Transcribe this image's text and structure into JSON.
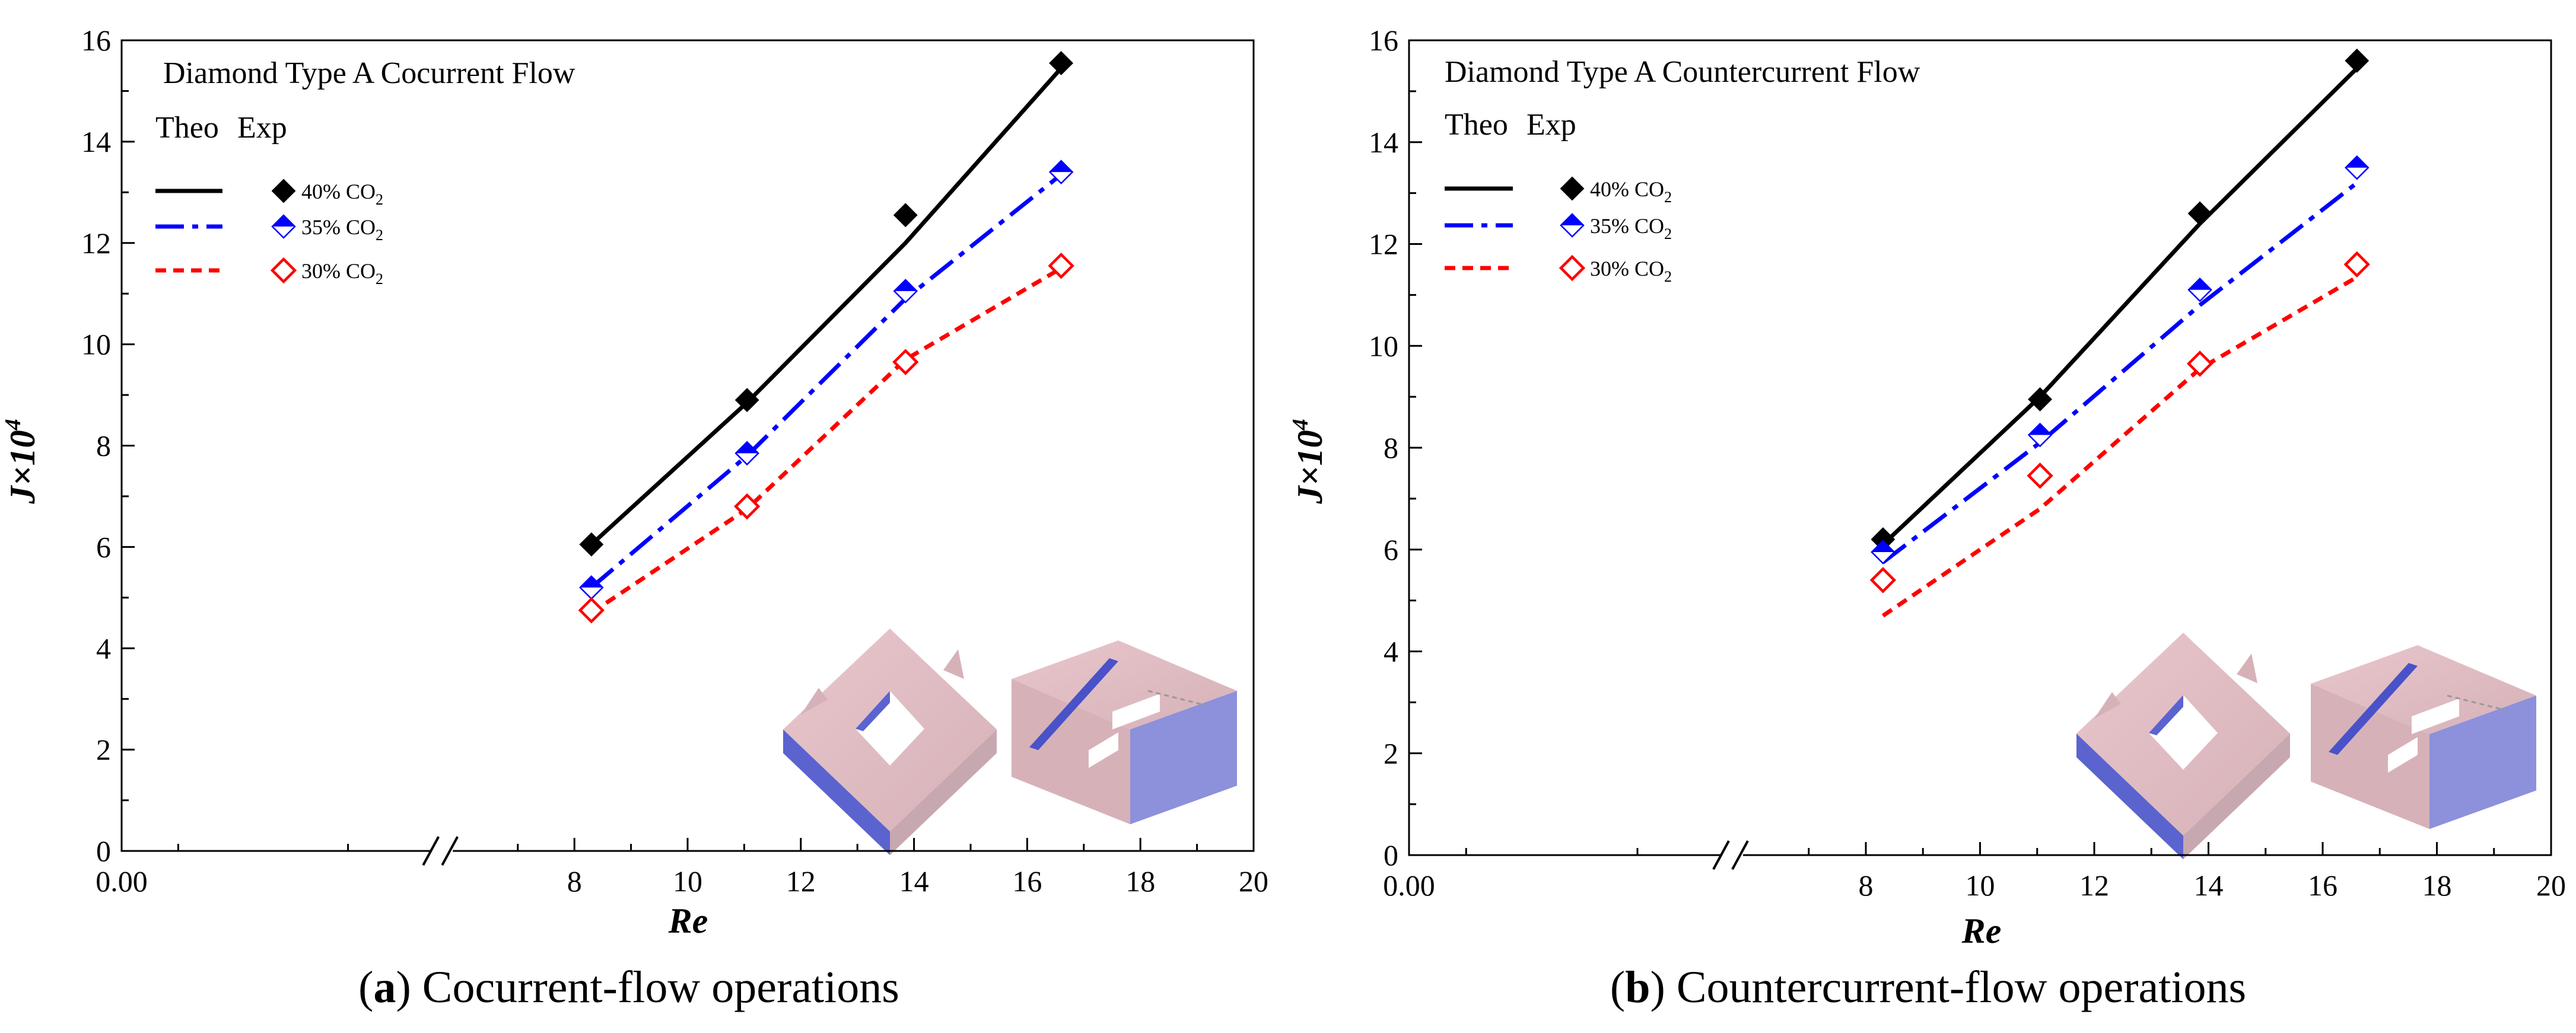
{
  "chart_data": [
    {
      "type": "line",
      "panel": "a",
      "title": "Diamond Type A   Cocurrent Flow",
      "caption_letter": "a",
      "caption_text": " Cocurrent-flow operations",
      "xlabel": "Re",
      "ylabel": "J×10",
      "ylabel_exp": "4",
      "xlim": [
        0,
        20
      ],
      "ylim": [
        0,
        16
      ],
      "axis_break": true,
      "xticks": [
        {
          "v": 0,
          "label": "0.00"
        },
        {
          "v": 8,
          "label": "8"
        },
        {
          "v": 10,
          "label": "10"
        },
        {
          "v": 12,
          "label": "12"
        },
        {
          "v": 14,
          "label": "14"
        },
        {
          "v": 16,
          "label": "16"
        },
        {
          "v": 18,
          "label": "18"
        },
        {
          "v": 20,
          "label": "20"
        }
      ],
      "yticks": [
        0,
        2,
        4,
        6,
        8,
        10,
        12,
        14,
        16
      ],
      "legend_header_theo": "Theo",
      "legend_header_exp": "Exp",
      "series": [
        {
          "name": "40% CO2",
          "label_main": "40% CO",
          "label_sub": "2",
          "color": "#000000",
          "dash": "",
          "marker": "filled-diamond",
          "theo_x": [
            8.3,
            11.05,
            13.85,
            16.6
          ],
          "theo_y": [
            6.05,
            8.85,
            12.0,
            15.45
          ],
          "exp_x": [
            8.3,
            11.05,
            13.85,
            16.6
          ],
          "exp_y": [
            6.05,
            8.9,
            12.55,
            15.55
          ]
        },
        {
          "name": "35% CO2",
          "label_main": "35% CO",
          "label_sub": "2",
          "color": "#0000ff",
          "dash": "48,14,10,14",
          "marker": "half-diamond",
          "theo_x": [
            8.3,
            11.05,
            13.85,
            16.6
          ],
          "theo_y": [
            5.2,
            7.8,
            10.9,
            13.35
          ],
          "exp_x": [
            8.3,
            11.05,
            13.85,
            16.6
          ],
          "exp_y": [
            5.2,
            7.85,
            11.05,
            13.4
          ]
        },
        {
          "name": "30% CO2",
          "label_main": "30% CO",
          "label_sub": "2",
          "color": "#ff0000",
          "dash": "18,12",
          "marker": "open-diamond",
          "theo_x": [
            8.3,
            11.05,
            13.85,
            16.6
          ],
          "theo_y": [
            4.7,
            6.75,
            9.7,
            11.5
          ],
          "exp_x": [
            8.3,
            11.05,
            13.85,
            16.6
          ],
          "exp_y": [
            4.75,
            6.8,
            9.65,
            11.55
          ]
        }
      ]
    },
    {
      "type": "line",
      "panel": "b",
      "title": "Diamond Type A   Countercurrent Flow",
      "caption_letter": "b",
      "caption_text": " Countercurrent-flow operations",
      "xlabel": "Re",
      "ylabel": "J×10",
      "ylabel_exp": "4",
      "xlim": [
        0,
        20
      ],
      "ylim": [
        0,
        16
      ],
      "axis_break": true,
      "xticks": [
        {
          "v": 0,
          "label": "0.00"
        },
        {
          "v": 8,
          "label": "8"
        },
        {
          "v": 10,
          "label": "10"
        },
        {
          "v": 12,
          "label": "12"
        },
        {
          "v": 14,
          "label": "14"
        },
        {
          "v": 16,
          "label": "16"
        },
        {
          "v": 18,
          "label": "18"
        },
        {
          "v": 20,
          "label": "20"
        }
      ],
      "yticks": [
        0,
        2,
        4,
        6,
        8,
        10,
        12,
        14,
        16
      ],
      "legend_header_theo": "Theo",
      "legend_header_exp": "Exp",
      "series": [
        {
          "name": "40% CO2",
          "label_main": "40% CO",
          "label_sub": "2",
          "color": "#000000",
          "dash": "",
          "marker": "filled-diamond",
          "theo_x": [
            8.3,
            11.05,
            13.85,
            16.6
          ],
          "theo_y": [
            6.1,
            9.0,
            12.4,
            15.45
          ],
          "exp_x": [
            8.3,
            11.05,
            13.85,
            16.6
          ],
          "exp_y": [
            6.2,
            8.95,
            12.6,
            15.6
          ]
        },
        {
          "name": "35% CO2",
          "label_main": "35% CO",
          "label_sub": "2",
          "color": "#0000ff",
          "dash": "48,14,10,14",
          "marker": "half-diamond",
          "theo_x": [
            8.3,
            11.05,
            13.85,
            16.6
          ],
          "theo_y": [
            5.75,
            8.1,
            10.8,
            13.2
          ],
          "exp_x": [
            8.3,
            11.05,
            13.85,
            16.6
          ],
          "exp_y": [
            5.95,
            8.25,
            11.1,
            13.5
          ]
        },
        {
          "name": "30% CO2",
          "label_main": "30% CO",
          "label_sub": "2",
          "color": "#ff0000",
          "dash": "18,12",
          "marker": "open-diamond",
          "theo_x": [
            8.3,
            11.05,
            13.85,
            16.6
          ],
          "theo_y": [
            4.7,
            6.8,
            9.55,
            11.35
          ],
          "exp_x": [
            8.3,
            11.05,
            13.85,
            16.6
          ],
          "exp_y": [
            5.4,
            7.45,
            9.65,
            11.6
          ]
        }
      ]
    }
  ]
}
